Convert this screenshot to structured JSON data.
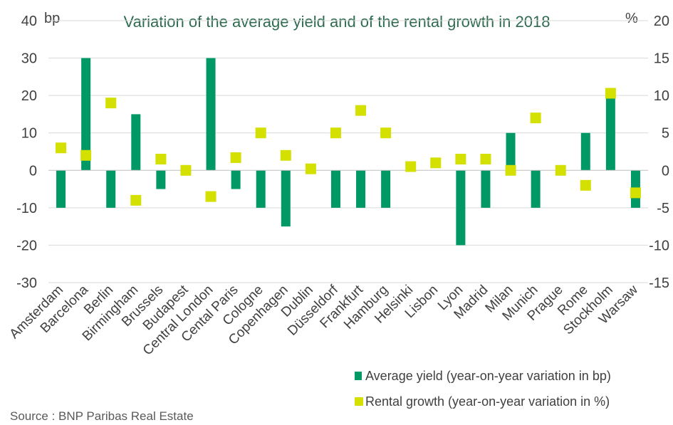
{
  "chart_data": {
    "type": "bar",
    "title": "Variation of the average yield and of the rental growth in 2018",
    "left_unit": "bp",
    "right_unit": "%",
    "categories": [
      "Amsterdam",
      "Barcelona",
      "Berlin",
      "Birmingham",
      "Brussels",
      "Budapest",
      "Central London",
      "Cental Paris",
      "Cologne",
      "Copenhagen",
      "Dublin",
      "Düsseldorf",
      "Frankfurt",
      "Hamburg",
      "Helsinki",
      "Lisbon",
      "Lyon",
      "Madrid",
      "Milan",
      "Munich",
      "Prague",
      "Rome",
      "Stockholm",
      "Warsaw"
    ],
    "series": [
      {
        "name": "Average yield (year-on-year variation in bp)",
        "type": "bar",
        "axis": "left",
        "color": "#009966",
        "values": [
          -10,
          30,
          -10,
          15,
          -5,
          0,
          30,
          -5,
          -10,
          -15,
          0,
          -10,
          -10,
          -10,
          0,
          0,
          -20,
          -10,
          10,
          -10,
          0,
          10,
          20,
          -10
        ]
      },
      {
        "name": "Rental growth (year-on-year variation in %)",
        "type": "marker",
        "axis": "right",
        "color": "#d4e000",
        "values": [
          3,
          2,
          9,
          -4,
          1.5,
          0,
          -3.5,
          1.7,
          5,
          2,
          0.2,
          5,
          8,
          5,
          0.5,
          1,
          1.5,
          1.5,
          0,
          7,
          0,
          -2,
          10.3,
          -3
        ]
      }
    ],
    "left_axis": {
      "ylim": [
        -30,
        40
      ],
      "ticks": [
        "-30",
        "-20",
        "-10",
        "0",
        "10",
        "20",
        "30",
        "40"
      ]
    },
    "right_axis": {
      "ylim": [
        -15,
        20
      ],
      "ticks": [
        "-15",
        "-10",
        "-5",
        "0",
        "5",
        "10",
        "15",
        "20"
      ]
    },
    "grid": true,
    "legend_position": "bottom-right"
  },
  "source": "Source : BNP Paribas Real Estate"
}
